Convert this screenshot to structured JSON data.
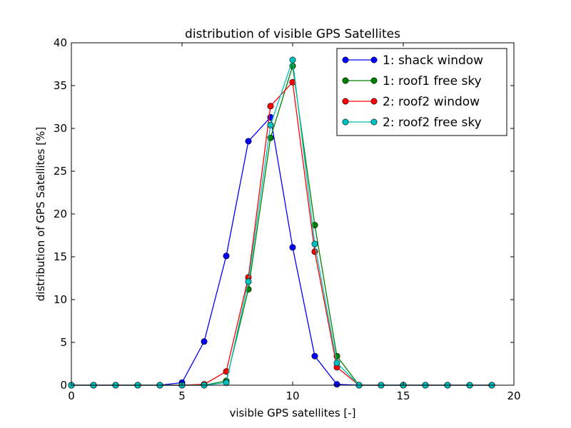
{
  "chart_data": {
    "type": "line",
    "title": "distribution of visible GPS Satellites",
    "xlabel": "visible GPS satellites [-]",
    "ylabel": "distribution of GPS Satellites [%]",
    "xlim": [
      0,
      20
    ],
    "ylim": [
      0,
      40
    ],
    "xticks": [
      0,
      5,
      10,
      15,
      20
    ],
    "yticks": [
      0,
      5,
      10,
      15,
      20,
      25,
      30,
      35,
      40
    ],
    "grid": false,
    "legend_position": "top-right",
    "x": [
      0,
      1,
      2,
      3,
      4,
      5,
      6,
      7,
      8,
      9,
      10,
      11,
      12,
      13,
      14,
      15,
      16,
      17,
      18,
      19
    ],
    "series": [
      {
        "name": "1: shack window",
        "color": "#0000ff",
        "values": [
          0,
          0,
          0,
          0,
          0,
          0.3,
          5.1,
          15.1,
          28.5,
          31.3,
          16.1,
          3.4,
          0.1,
          0,
          0,
          0,
          0,
          0,
          0,
          0
        ]
      },
      {
        "name": "1: roof1 free sky",
        "color": "#008000",
        "values": [
          0,
          0,
          0,
          0,
          0,
          0,
          0,
          0.5,
          11.2,
          28.9,
          37.3,
          18.7,
          3.4,
          0,
          0,
          0,
          0,
          0,
          0,
          0
        ]
      },
      {
        "name": "2: roof2 window",
        "color": "#ff0000",
        "values": [
          0,
          0,
          0,
          0,
          0,
          0,
          0.1,
          1.6,
          12.6,
          32.6,
          35.4,
          15.6,
          2.1,
          0,
          0,
          0,
          0,
          0,
          0,
          0
        ]
      },
      {
        "name": "2: roof2 free sky",
        "color": "#00bfbf",
        "values": [
          0,
          0,
          0,
          0,
          0,
          0,
          0,
          0.3,
          12.1,
          30.4,
          38.0,
          16.5,
          2.6,
          0,
          0,
          0,
          0,
          0,
          0,
          0
        ]
      }
    ]
  }
}
